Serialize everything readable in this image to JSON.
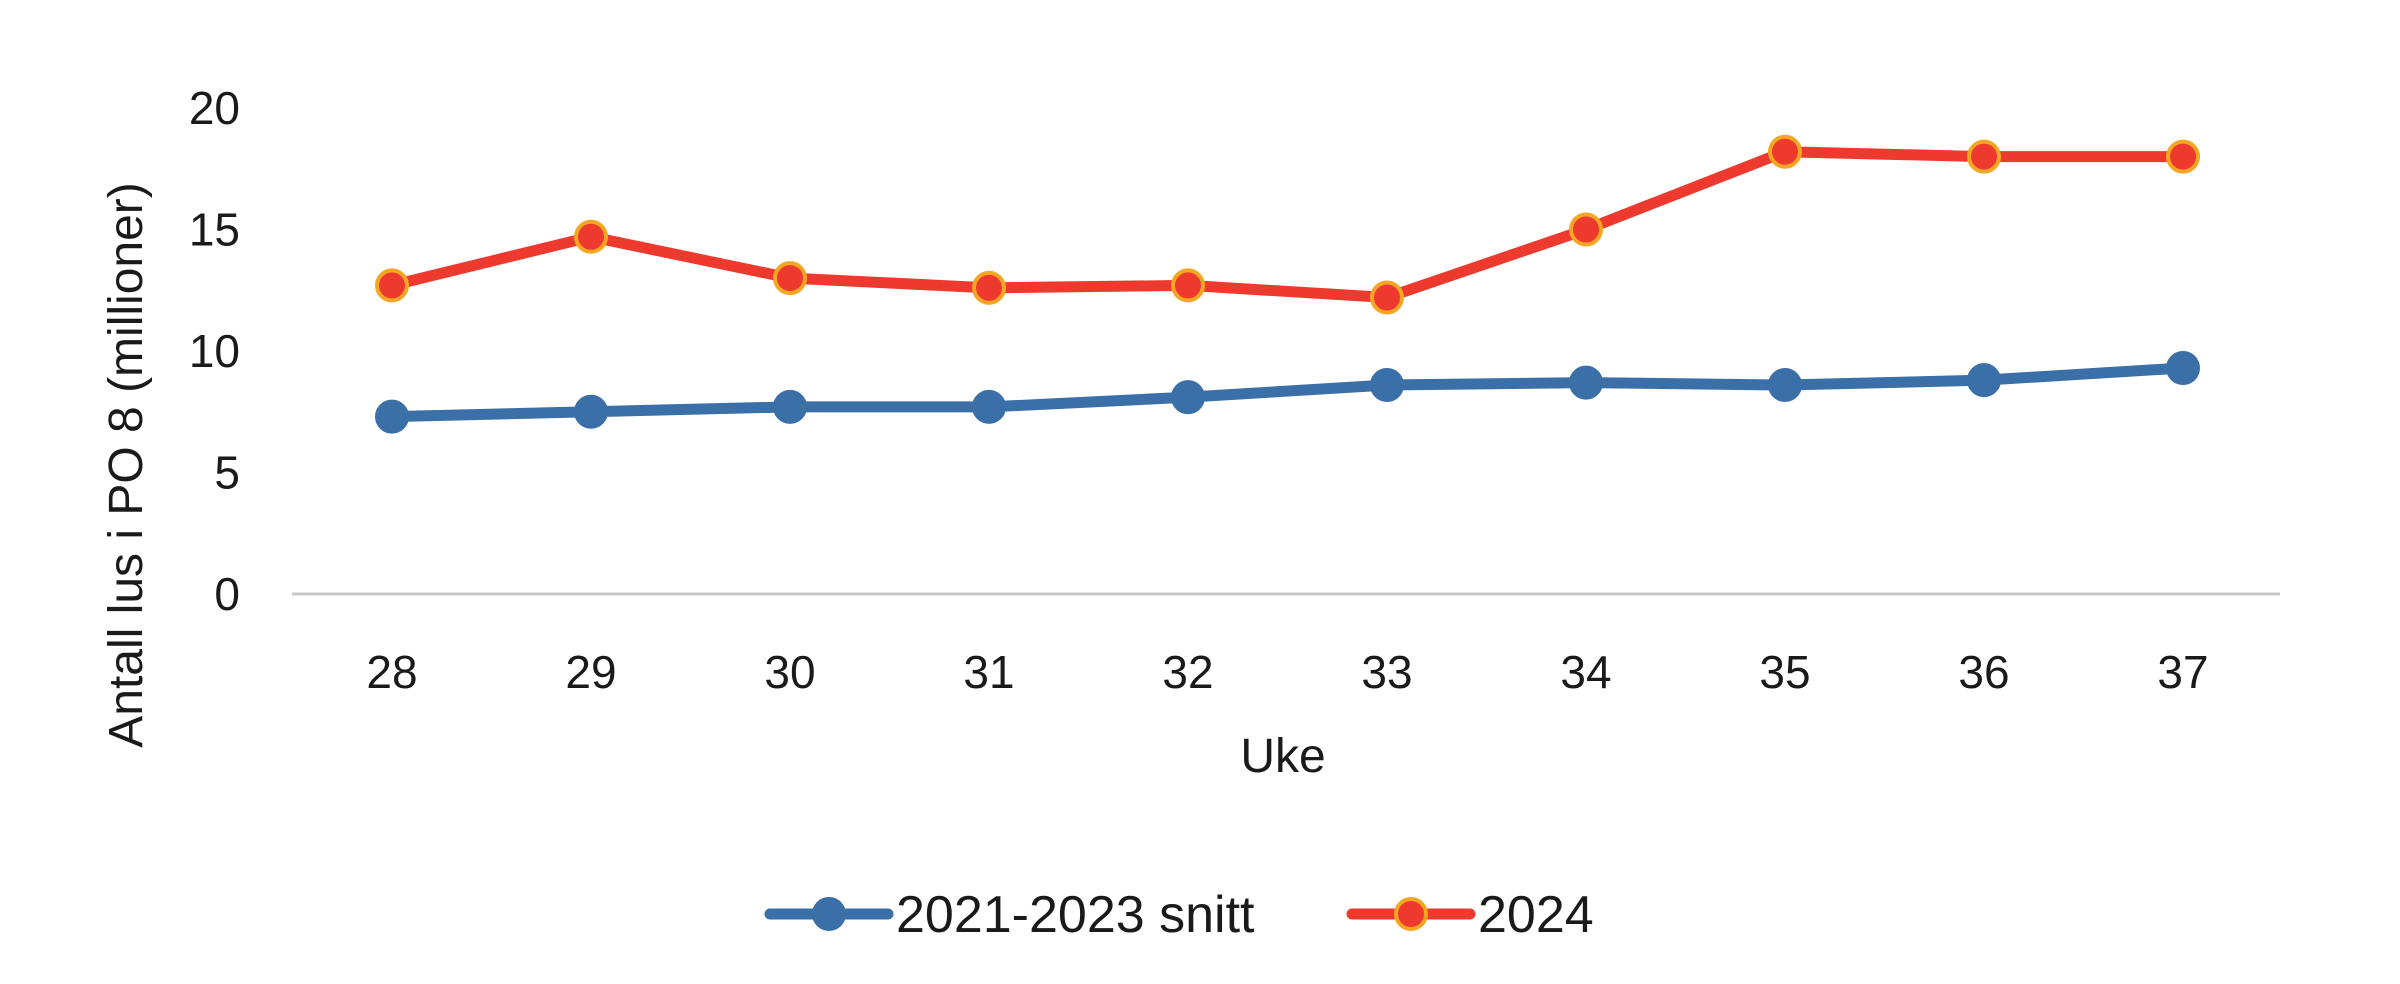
{
  "chart_data": {
    "type": "line",
    "title": "",
    "xlabel": "Uke",
    "ylabel": "Antall lus i PO 8 (millioner)",
    "categories": [
      "28",
      "29",
      "30",
      "31",
      "32",
      "33",
      "34",
      "35",
      "36",
      "37"
    ],
    "ylim": [
      0,
      20
    ],
    "yticks": [
      "0",
      "5",
      "10",
      "15",
      "20"
    ],
    "grid": false,
    "legend_position": "bottom-center",
    "series": [
      {
        "name": "2021-2023 snitt",
        "color": "#3a6fa8",
        "marker_fill": "#3a6fa8",
        "marker_stroke": "#3a6fa8",
        "values": [
          7.3,
          7.5,
          7.7,
          7.7,
          8.1,
          8.6,
          8.7,
          8.6,
          8.8,
          9.3
        ]
      },
      {
        "name": "2024",
        "color": "#ee3a2e",
        "marker_fill": "#ee3a2e",
        "marker_stroke": "#f5a623",
        "values": [
          12.7,
          14.7,
          13.0,
          12.6,
          12.7,
          12.2,
          15.0,
          18.2,
          18.0,
          18.0
        ]
      }
    ]
  }
}
